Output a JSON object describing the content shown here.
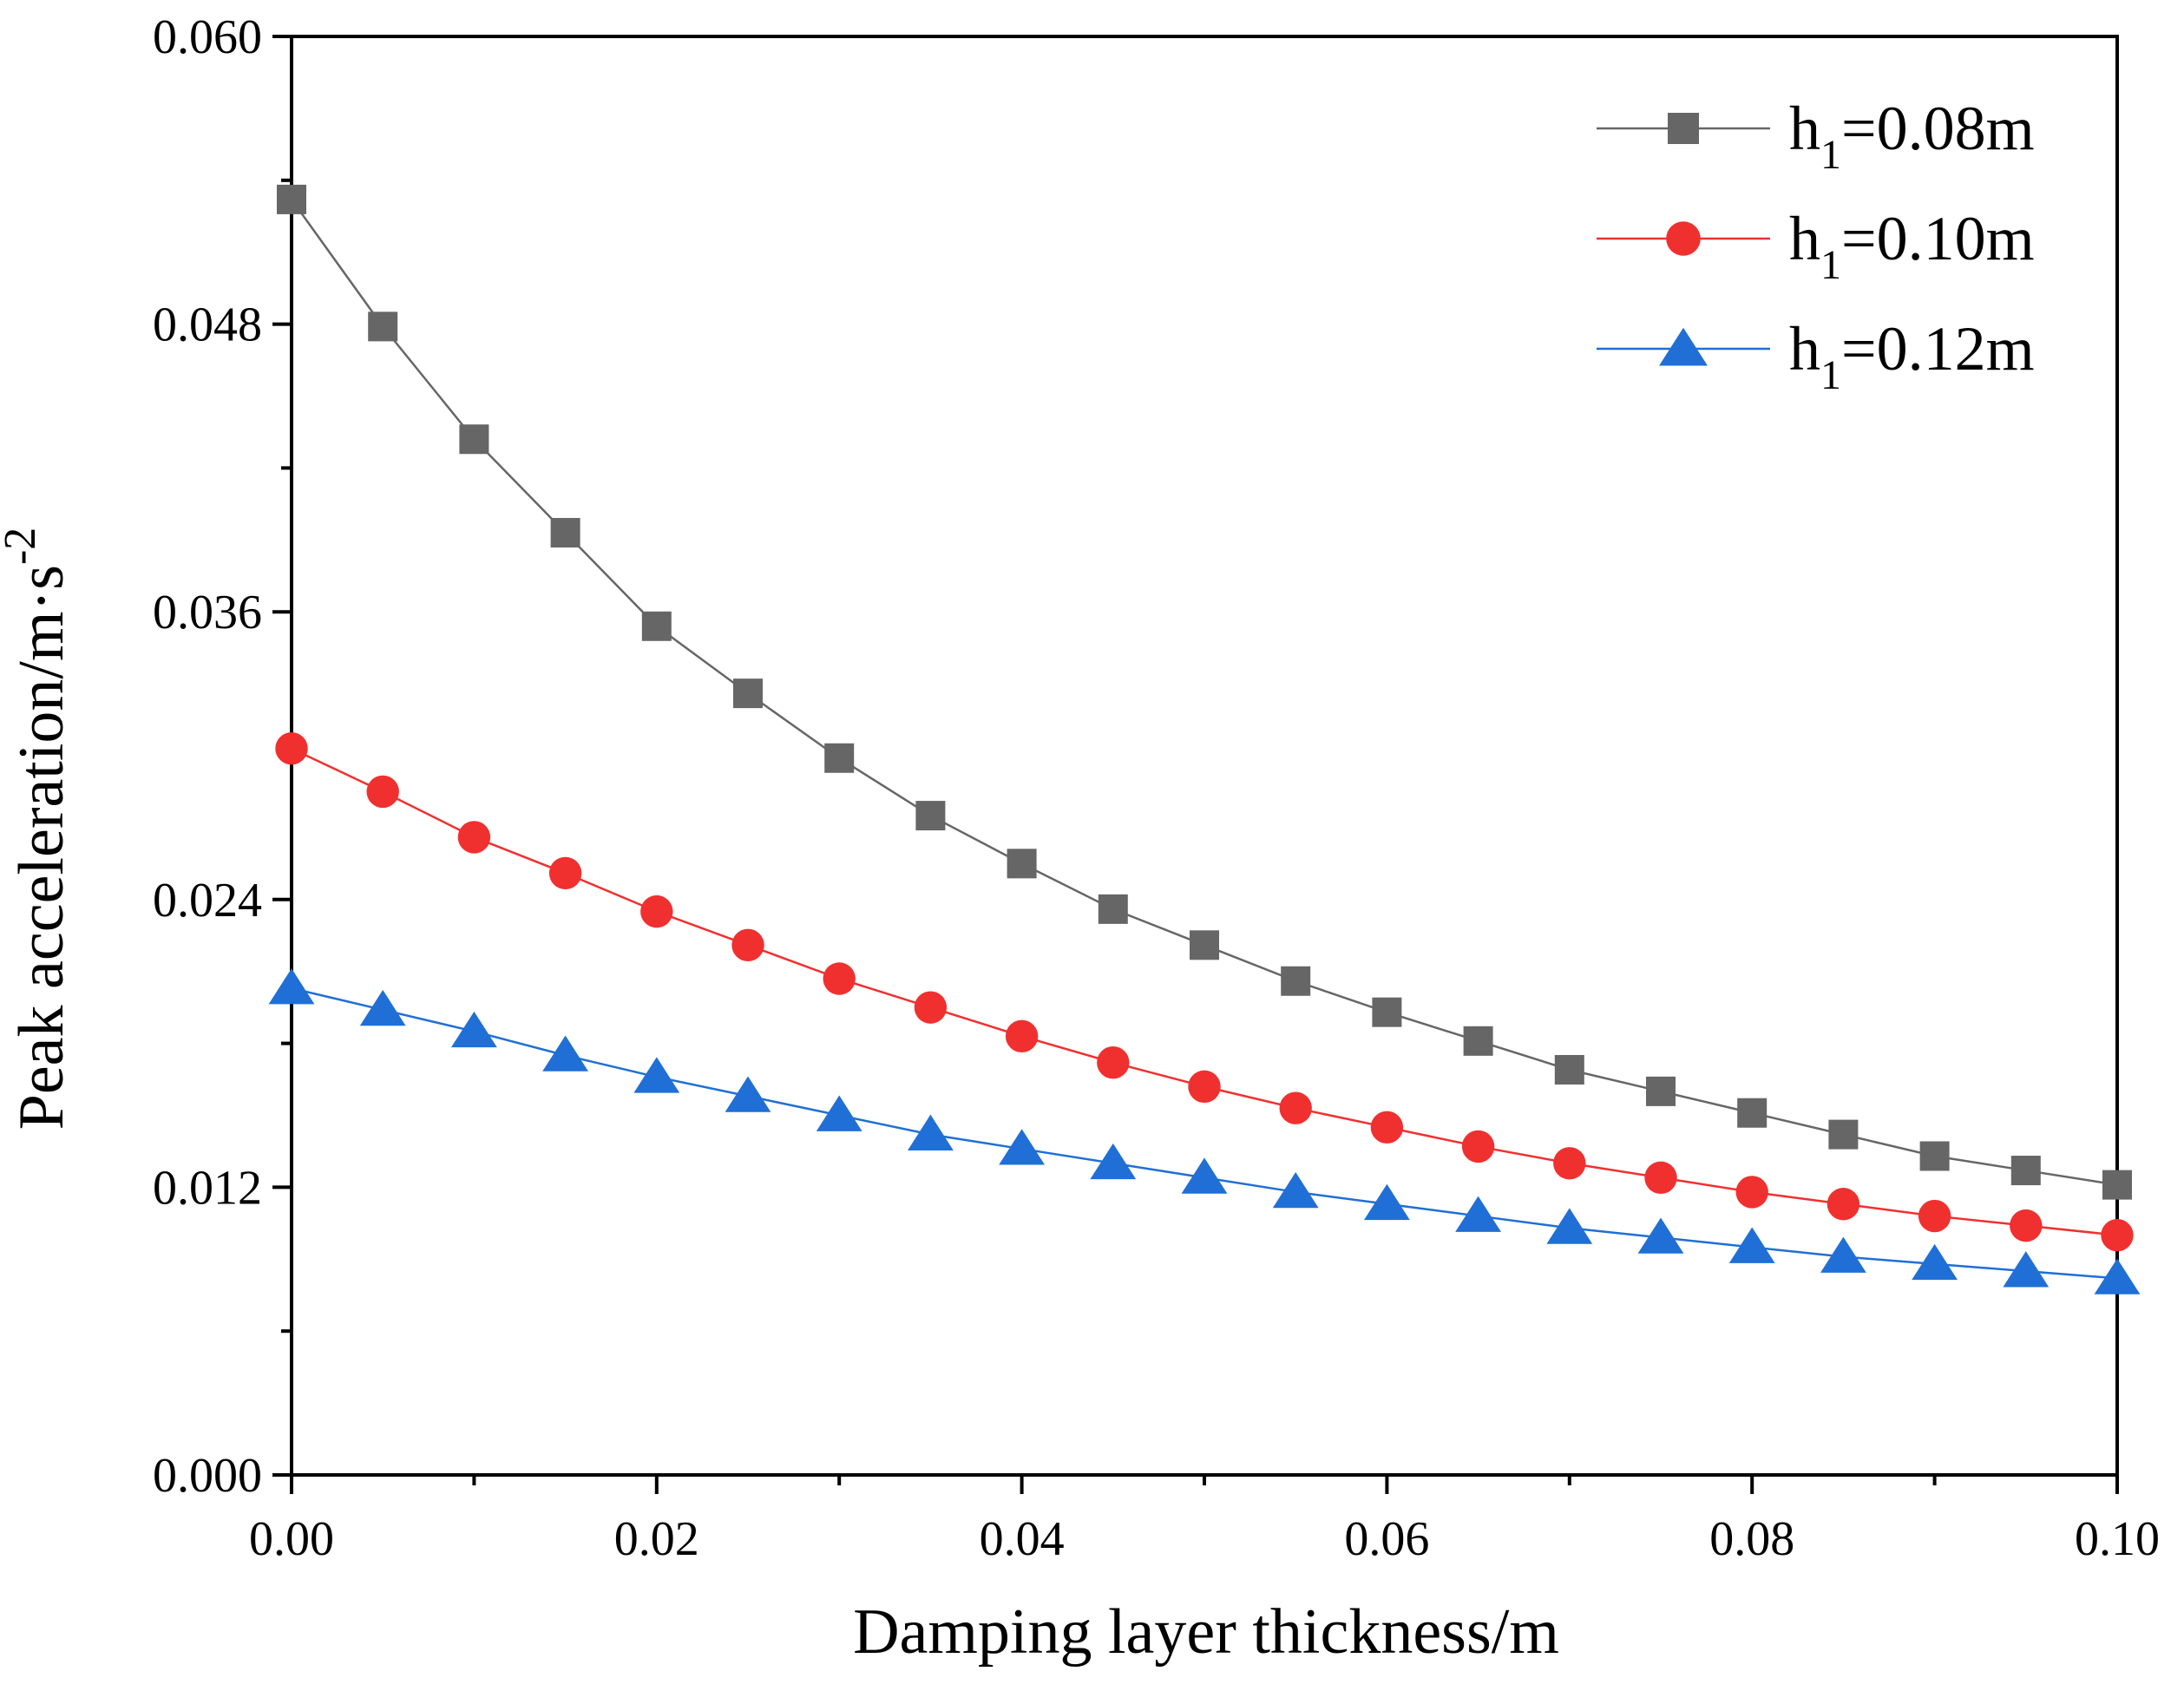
{
  "chart_data": {
    "type": "line",
    "title": "",
    "xlabel": "Damping layer thickness/m",
    "ylabel": "Peak acceleration/m·s",
    "ylabel_superscript": "-2",
    "xlim": [
      0,
      0.1
    ],
    "ylim": [
      0,
      0.06
    ],
    "x_ticks": [
      "0.00",
      "0.02",
      "0.04",
      "0.06",
      "0.08",
      "0.10"
    ],
    "y_ticks": [
      "0.000",
      "0.012",
      "0.024",
      "0.036",
      "0.048",
      "0.060"
    ],
    "grid": false,
    "legend_position": "top-right",
    "x": [
      0,
      0.005,
      0.01,
      0.015,
      0.02,
      0.025,
      0.03,
      0.035,
      0.04,
      0.045,
      0.05,
      0.055,
      0.06,
      0.065,
      0.07,
      0.075,
      0.08,
      0.085,
      0.09,
      0.095,
      0.1
    ],
    "series": [
      {
        "name_main": "h",
        "name_sub": "1",
        "name_rest": "=0.08m",
        "color": "#666666",
        "marker": "square",
        "values": [
          0.0532,
          0.0479,
          0.0432,
          0.0393,
          0.0354,
          0.0326,
          0.0299,
          0.0275,
          0.0255,
          0.0236,
          0.0221,
          0.0206,
          0.0193,
          0.0181,
          0.0169,
          0.016,
          0.0151,
          0.0142,
          0.0133,
          0.0127,
          0.0121
        ]
      },
      {
        "name_main": "h",
        "name_sub": "1",
        "name_rest": "=0.10m",
        "color": "#f0302f",
        "marker": "circle",
        "values": [
          0.0303,
          0.0285,
          0.0266,
          0.0251,
          0.0235,
          0.0221,
          0.0207,
          0.0195,
          0.0183,
          0.0172,
          0.0162,
          0.0153,
          0.0145,
          0.0137,
          0.013,
          0.0124,
          0.0118,
          0.0113,
          0.0108,
          0.0104,
          0.01
        ]
      },
      {
        "name_main": "h",
        "name_sub": "1",
        "name_rest": "=0.12m",
        "color": "#1f6fd6",
        "marker": "triangle",
        "values": [
          0.0203,
          0.0194,
          0.0185,
          0.0175,
          0.0166,
          0.0158,
          0.015,
          0.0142,
          0.0136,
          0.013,
          0.0124,
          0.0118,
          0.0113,
          0.0108,
          0.0103,
          0.0099,
          0.0095,
          0.0091,
          0.0088,
          0.0085,
          0.0082
        ]
      }
    ]
  }
}
